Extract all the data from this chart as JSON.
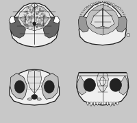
{
  "fig_bg": "#c8c8c8",
  "white": "#ffffff",
  "off_white": "#f0f0f0",
  "light": "#e0e0e0",
  "light_mid": "#c0c0c0",
  "mid": "#999999",
  "dark_mid": "#666666",
  "dark": "#444444",
  "very_dark": "#222222",
  "black": "#111111",
  "outline": "#1a1a1a",
  "figsize": [
    2.0,
    1.79
  ],
  "dpi": 100
}
